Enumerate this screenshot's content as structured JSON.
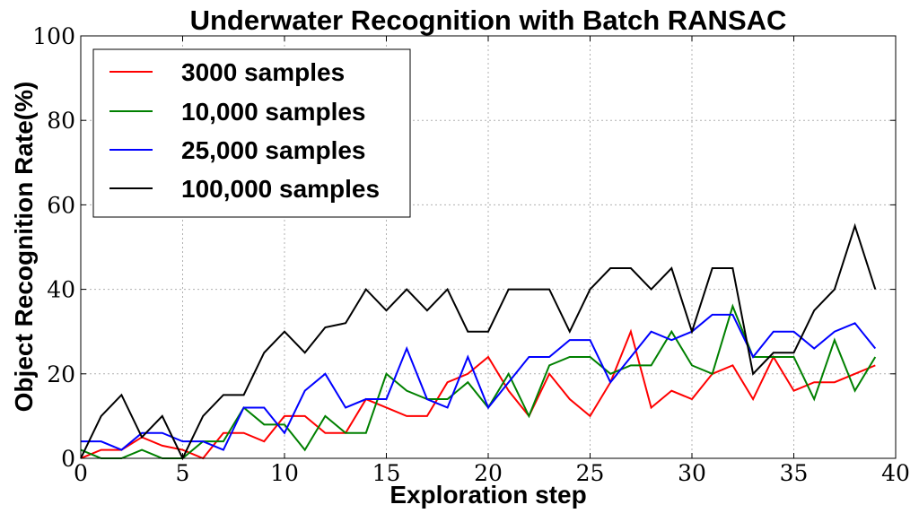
{
  "chart_data": {
    "type": "line",
    "title": "Underwater Recognition with Batch RANSAC",
    "xlabel": "Exploration step",
    "ylabel": "Object Recognition Rate(%)",
    "xlim": [
      0,
      40
    ],
    "ylim": [
      0,
      100
    ],
    "xticks": [
      0,
      5,
      10,
      15,
      20,
      25,
      30,
      35,
      40
    ],
    "yticks": [
      0,
      20,
      40,
      60,
      80,
      100
    ],
    "grid": true,
    "legend_position": "upper-left",
    "x": [
      0,
      1,
      2,
      3,
      4,
      5,
      6,
      7,
      8,
      9,
      10,
      11,
      12,
      13,
      14,
      15,
      16,
      17,
      18,
      19,
      20,
      21,
      22,
      23,
      24,
      25,
      26,
      27,
      28,
      29,
      30,
      31,
      32,
      33,
      34,
      35,
      36,
      37,
      38,
      39
    ],
    "series": [
      {
        "name": "3000 samples",
        "color": "#ff0000",
        "values": [
          0,
          2,
          2,
          5,
          3,
          2,
          0,
          6,
          6,
          4,
          10,
          10,
          6,
          6,
          14,
          12,
          10,
          10,
          18,
          20,
          24,
          16,
          10,
          20,
          14,
          10,
          18,
          30,
          12,
          16,
          14,
          20,
          22,
          14,
          24,
          16,
          18,
          18,
          20,
          22
        ]
      },
      {
        "name": "10,000 samples",
        "color": "#008000",
        "values": [
          2,
          0,
          0,
          2,
          0,
          0,
          4,
          4,
          12,
          8,
          8,
          2,
          10,
          6,
          6,
          20,
          16,
          14,
          14,
          18,
          12,
          20,
          10,
          22,
          24,
          24,
          20,
          22,
          22,
          30,
          22,
          20,
          36,
          24,
          24,
          24,
          14,
          28,
          16,
          24
        ]
      },
      {
        "name": "25,000 samples",
        "color": "#0000ff",
        "values": [
          4,
          4,
          2,
          6,
          6,
          4,
          4,
          2,
          12,
          12,
          6,
          16,
          20,
          12,
          14,
          14,
          26,
          14,
          12,
          24,
          12,
          18,
          24,
          24,
          28,
          28,
          18,
          24,
          30,
          28,
          30,
          34,
          34,
          24,
          30,
          30,
          26,
          30,
          32,
          26
        ]
      },
      {
        "name": "100,000 samples",
        "color": "#000000",
        "values": [
          0,
          10,
          15,
          5,
          10,
          0,
          10,
          15,
          15,
          25,
          30,
          25,
          31,
          32,
          40,
          35,
          40,
          35,
          40,
          30,
          30,
          40,
          40,
          40,
          30,
          40,
          45,
          45,
          40,
          45,
          30,
          45,
          45,
          20,
          25,
          25,
          35,
          40,
          55,
          40
        ]
      }
    ]
  }
}
